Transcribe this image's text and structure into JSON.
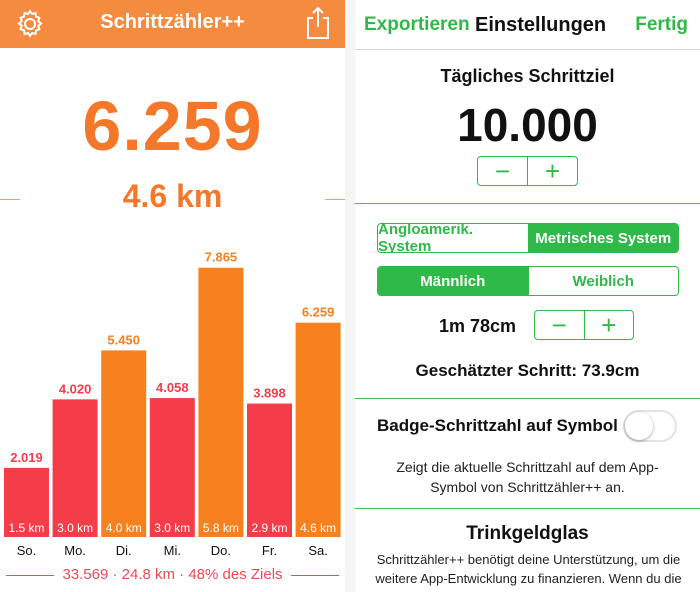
{
  "left": {
    "title": "Schrittzähler++",
    "steps_today": "6.259",
    "distance_today": "4.6 km",
    "header_color": "#f58b3f",
    "icons": {
      "settings": "gear-icon",
      "share": "share-icon"
    },
    "summary": "33.569 · 24.8 km · 48% des Ziels"
  },
  "chart_data": {
    "type": "bar",
    "categories": [
      "So.",
      "Mo.",
      "Di.",
      "Mi.",
      "Do.",
      "Fr.",
      "Sa."
    ],
    "values": [
      2019,
      4020,
      5450,
      4058,
      7865,
      3898,
      6259
    ],
    "value_labels": [
      "2.019",
      "4.020",
      "5.450",
      "4.058",
      "7.865",
      "3.898",
      "6.259"
    ],
    "distance_labels": [
      "1.5 km",
      "3.0 km",
      "4.0 km",
      "3.0 km",
      "5.8 km",
      "2.9 km",
      "4.6 km"
    ],
    "colors": [
      "#f43d49",
      "#f43d49",
      "#f7801f",
      "#f43d49",
      "#f7801f",
      "#f43d49",
      "#f7801f"
    ],
    "ylim": [
      0,
      8500
    ]
  },
  "right": {
    "export_label": "Exportieren",
    "title": "Einstellungen",
    "done_label": "Fertig",
    "goal_title": "Tägliches Schrittziel",
    "goal_value": "10.000",
    "minus": "−",
    "plus": "+",
    "unit_imperial": "Angloamerik. System",
    "unit_metric": "Metrisches System",
    "gender_male": "Männlich",
    "gender_female": "Weiblich",
    "height": "1m 78cm",
    "estimated_stride": "Geschätzter Schritt: 73.9cm",
    "badge_label": "Badge-Schrittzahl auf Symbol",
    "badge_desc": "Zeigt die aktuelle Schrittzahl auf dem App-Symbol von Schrittzähler++ an.",
    "tip_title": "Trinkgeldglas",
    "tip_text": "Schrittzähler++ benötigt deine Unterstützung, um die weitere App-Entwicklung zu finanzieren. Wenn du die App wirklich findest und sie dir gerne nutzt",
    "accent": "#2fb948"
  }
}
